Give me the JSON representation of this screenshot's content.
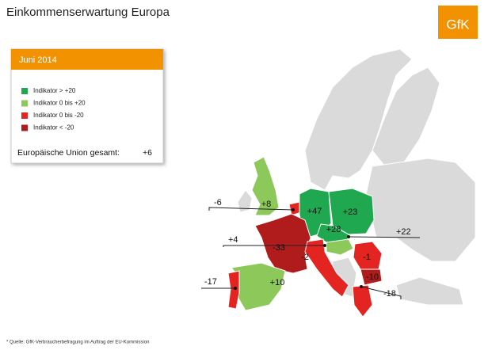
{
  "header": {
    "title": "Einkommenserwartung Europa",
    "logo": "GfK"
  },
  "legend": {
    "period": "Juni 2014",
    "items": [
      {
        "label": "Indikator > +20",
        "color": "#1fa84f"
      },
      {
        "label": "Indikator 0 bis +20",
        "color": "#8dc85a"
      },
      {
        "label": "Indikator 0 bis -20",
        "color": "#e32420"
      },
      {
        "label": "Indikator < -20",
        "color": "#b01c1c"
      }
    ],
    "total_label": "Europäische Union gesamt:",
    "total_value": "+6"
  },
  "map_labels": [
    "+8",
    "-6",
    "+47",
    "+23",
    "+28",
    "+22",
    "+4",
    "-33",
    "-2",
    "-1",
    "-10",
    "-18",
    "+10",
    "-17"
  ],
  "footnote": "* Quelle: GfK-Verbraucherbefragung im Auftrag der EU-Kommission"
}
